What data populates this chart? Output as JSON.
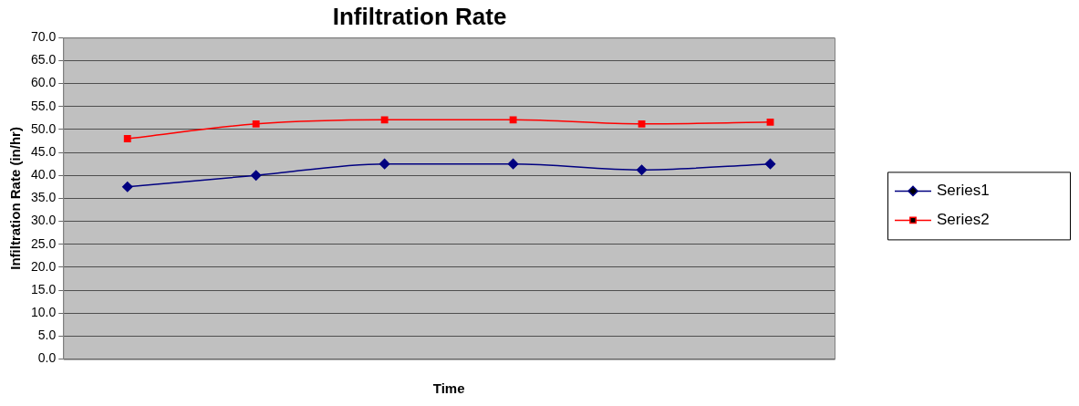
{
  "chart_data": {
    "type": "line",
    "title": "Infiltration Rate",
    "xlabel": "Time",
    "ylabel": "Infiltration Rate (in/hr)",
    "categories": [
      null,
      null,
      null,
      null,
      null,
      null
    ],
    "series": [
      {
        "name": "Series1",
        "color": "#000080",
        "marker": "diamond",
        "values": [
          37.5,
          40.0,
          42.5,
          42.5,
          41.2,
          42.5
        ]
      },
      {
        "name": "Series2",
        "color": "#ff0000",
        "marker": "square",
        "values": [
          48.0,
          51.2,
          52.1,
          52.1,
          51.2,
          51.6
        ]
      }
    ],
    "ylim": [
      0,
      70
    ],
    "yticks": [
      {
        "value": 0,
        "label": "0.0"
      },
      {
        "value": 5,
        "label": "5.0"
      },
      {
        "value": 10,
        "label": "10.0"
      },
      {
        "value": 15,
        "label": "15.0"
      },
      {
        "value": 20,
        "label": "20.0"
      },
      {
        "value": 25,
        "label": "25.0"
      },
      {
        "value": 30,
        "label": "30.0"
      },
      {
        "value": 35,
        "label": "35.0"
      },
      {
        "value": 40,
        "label": "40.0"
      },
      {
        "value": 45,
        "label": "45.0"
      },
      {
        "value": 50,
        "label": "50.0"
      },
      {
        "value": 55,
        "label": "55.0"
      },
      {
        "value": 60,
        "label": "60.0"
      },
      {
        "value": 65,
        "label": "65.0"
      },
      {
        "value": 70,
        "label": "70.0"
      }
    ],
    "grid": "y",
    "legend": "right",
    "line_style": "solid"
  }
}
